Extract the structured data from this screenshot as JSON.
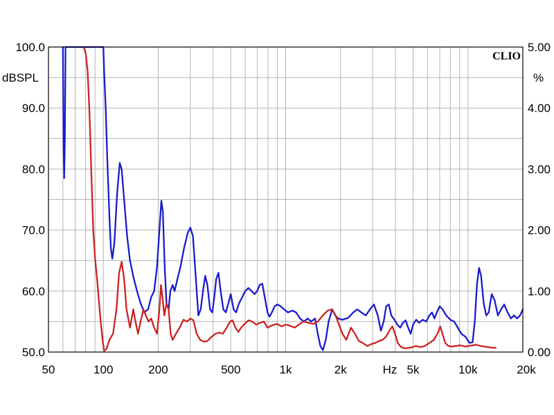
{
  "chart_data": {
    "type": "line",
    "x_scale": "log",
    "xlim": [
      50,
      20000
    ],
    "ylim_left": [
      50,
      100
    ],
    "ylim_right": [
      0,
      5
    ],
    "ylabel_left": "dBSPL",
    "ylabel_right": "%",
    "x_unit_label": "Hz",
    "brand": "CLIO",
    "grid": true,
    "x_ticks": [
      {
        "value": 50,
        "label": "50"
      },
      {
        "value": 100,
        "label": "100"
      },
      {
        "value": 200,
        "label": "200"
      },
      {
        "value": 500,
        "label": "500"
      },
      {
        "value": 1000,
        "label": "1k"
      },
      {
        "value": 2000,
        "label": "2k"
      },
      {
        "value": 5000,
        "label": "5k"
      },
      {
        "value": 10000,
        "label": "10k"
      },
      {
        "value": 20000,
        "label": "20k"
      }
    ],
    "y_ticks_left": [
      "100.0",
      "90.0",
      "80.0",
      "70.0",
      "60.0",
      "50.0"
    ],
    "y_ticks_right": [
      "5.00",
      "4.00",
      "3.00",
      "2.00",
      "1.00",
      "0.00"
    ],
    "colors": {
      "blue": "#1a1acc",
      "red": "#cc2222",
      "grid": "#b4b4b4",
      "frame": "#000000"
    },
    "series": [
      {
        "color": "#1a1acc",
        "points": [
          [
            60,
            100
          ],
          [
            60.5,
            84
          ],
          [
            61,
            78.5
          ],
          [
            61.5,
            85
          ],
          [
            62,
            100
          ],
          [
            100,
            100
          ],
          [
            101,
            96
          ],
          [
            103,
            90
          ],
          [
            105,
            82
          ],
          [
            108,
            72
          ],
          [
            110,
            67
          ],
          [
            112,
            65.3
          ],
          [
            115,
            68
          ],
          [
            119,
            76
          ],
          [
            123,
            81
          ],
          [
            126,
            80
          ],
          [
            130,
            75
          ],
          [
            135,
            69
          ],
          [
            140,
            65
          ],
          [
            147,
            62
          ],
          [
            153,
            60
          ],
          [
            160,
            58
          ],
          [
            168,
            56.5
          ],
          [
            176,
            57
          ],
          [
            183,
            59
          ],
          [
            190,
            60
          ],
          [
            197,
            64
          ],
          [
            203,
            70
          ],
          [
            208,
            74.8
          ],
          [
            212,
            73
          ],
          [
            217,
            64
          ],
          [
            222,
            58
          ],
          [
            228,
            57
          ],
          [
            233,
            60
          ],
          [
            240,
            61
          ],
          [
            246,
            60
          ],
          [
            255,
            62
          ],
          [
            265,
            64
          ],
          [
            277,
            67
          ],
          [
            290,
            69.5
          ],
          [
            300,
            70.4
          ],
          [
            310,
            69
          ],
          [
            320,
            63
          ],
          [
            332,
            56
          ],
          [
            342,
            57
          ],
          [
            352,
            60
          ],
          [
            362,
            62.5
          ],
          [
            372,
            61
          ],
          [
            385,
            57
          ],
          [
            396,
            56.5
          ],
          [
            406,
            59
          ],
          [
            416,
            62
          ],
          [
            428,
            63
          ],
          [
            440,
            60
          ],
          [
            455,
            57
          ],
          [
            470,
            56.5
          ],
          [
            485,
            58
          ],
          [
            500,
            59.5
          ],
          [
            518,
            57
          ],
          [
            535,
            56.5
          ],
          [
            555,
            58
          ],
          [
            578,
            59
          ],
          [
            600,
            60
          ],
          [
            625,
            60.5
          ],
          [
            650,
            60
          ],
          [
            675,
            59.5
          ],
          [
            698,
            60
          ],
          [
            720,
            61
          ],
          [
            745,
            61.2
          ],
          [
            768,
            59
          ],
          [
            795,
            56.5
          ],
          [
            815,
            55.8
          ],
          [
            840,
            56.5
          ],
          [
            870,
            57.5
          ],
          [
            900,
            57.8
          ],
          [
            940,
            57.5
          ],
          [
            980,
            57
          ],
          [
            1030,
            56.5
          ],
          [
            1090,
            56.8
          ],
          [
            1140,
            56.5
          ],
          [
            1200,
            55.5
          ],
          [
            1260,
            55
          ],
          [
            1320,
            55.5
          ],
          [
            1380,
            55
          ],
          [
            1450,
            55.5
          ],
          [
            1500,
            53
          ],
          [
            1550,
            51
          ],
          [
            1600,
            50.3
          ],
          [
            1660,
            52
          ],
          [
            1720,
            55
          ],
          [
            1800,
            57
          ],
          [
            1870,
            56
          ],
          [
            1940,
            55.5
          ],
          [
            2050,
            55.3
          ],
          [
            2200,
            55.6
          ],
          [
            2350,
            56.5
          ],
          [
            2470,
            57
          ],
          [
            2600,
            56.5
          ],
          [
            2750,
            56
          ],
          [
            2900,
            57
          ],
          [
            3050,
            57.8
          ],
          [
            3200,
            56
          ],
          [
            3330,
            53.5
          ],
          [
            3450,
            55
          ],
          [
            3560,
            57.5
          ],
          [
            3680,
            57.8
          ],
          [
            3800,
            56
          ],
          [
            3950,
            55.3
          ],
          [
            4100,
            54.5
          ],
          [
            4250,
            54
          ],
          [
            4400,
            54.8
          ],
          [
            4550,
            55.2
          ],
          [
            4700,
            54
          ],
          [
            4850,
            53
          ],
          [
            5000,
            54.5
          ],
          [
            5200,
            55.3
          ],
          [
            5400,
            54.8
          ],
          [
            5650,
            55.3
          ],
          [
            5900,
            55
          ],
          [
            6150,
            56
          ],
          [
            6350,
            56.5
          ],
          [
            6550,
            55.5
          ],
          [
            6750,
            56.5
          ],
          [
            7000,
            57.5
          ],
          [
            7250,
            57
          ],
          [
            7600,
            56
          ],
          [
            8000,
            55.3
          ],
          [
            8400,
            55
          ],
          [
            8800,
            54
          ],
          [
            9200,
            53
          ],
          [
            9700,
            52.5
          ],
          [
            10200,
            51.5
          ],
          [
            10600,
            51.6
          ],
          [
            10900,
            55
          ],
          [
            11200,
            61
          ],
          [
            11500,
            63.8
          ],
          [
            11800,
            62.5
          ],
          [
            12200,
            58
          ],
          [
            12600,
            56
          ],
          [
            13000,
            56.5
          ],
          [
            13500,
            59.5
          ],
          [
            14000,
            58.5
          ],
          [
            14600,
            56
          ],
          [
            15200,
            57
          ],
          [
            15800,
            57.8
          ],
          [
            16500,
            56.5
          ],
          [
            17200,
            55.5
          ],
          [
            17900,
            56
          ],
          [
            18600,
            55.5
          ],
          [
            19300,
            56
          ],
          [
            20000,
            57
          ]
        ]
      },
      {
        "color": "#cc2222",
        "points": [
          [
            78,
            100
          ],
          [
            80,
            99
          ],
          [
            82,
            96
          ],
          [
            84,
            89
          ],
          [
            86,
            79
          ],
          [
            88,
            70
          ],
          [
            90,
            65.5
          ],
          [
            93,
            61
          ],
          [
            96,
            56
          ],
          [
            99,
            52
          ],
          [
            101,
            50.2
          ],
          [
            104,
            50.5
          ],
          [
            108,
            52
          ],
          [
            113,
            53
          ],
          [
            118,
            57
          ],
          [
            122,
            63
          ],
          [
            126,
            64.8
          ],
          [
            130,
            62
          ],
          [
            134,
            57
          ],
          [
            140,
            54
          ],
          [
            146,
            57
          ],
          [
            150,
            55
          ],
          [
            155,
            53
          ],
          [
            160,
            55
          ],
          [
            166,
            57
          ],
          [
            171,
            56
          ],
          [
            177,
            55
          ],
          [
            183,
            55.5
          ],
          [
            190,
            54
          ],
          [
            197,
            53
          ],
          [
            203,
            57
          ],
          [
            207,
            61
          ],
          [
            211,
            59
          ],
          [
            216,
            56
          ],
          [
            222,
            58
          ],
          [
            228,
            57
          ],
          [
            234,
            53
          ],
          [
            240,
            52
          ],
          [
            250,
            53
          ],
          [
            262,
            54
          ],
          [
            275,
            55.3
          ],
          [
            288,
            55
          ],
          [
            300,
            55.5
          ],
          [
            312,
            55.2
          ],
          [
            325,
            53
          ],
          [
            340,
            52
          ],
          [
            355,
            51.7
          ],
          [
            372,
            51.8
          ],
          [
            392,
            52.5
          ],
          [
            412,
            53
          ],
          [
            432,
            53.2
          ],
          [
            452,
            53
          ],
          [
            475,
            54
          ],
          [
            495,
            55
          ],
          [
            512,
            55.2
          ],
          [
            530,
            54
          ],
          [
            550,
            53.3
          ],
          [
            570,
            54
          ],
          [
            595,
            54.6
          ],
          [
            625,
            55.2
          ],
          [
            655,
            55
          ],
          [
            690,
            54.5
          ],
          [
            725,
            54.8
          ],
          [
            760,
            55
          ],
          [
            795,
            54
          ],
          [
            830,
            54.3
          ],
          [
            865,
            54.5
          ],
          [
            900,
            54.6
          ],
          [
            950,
            54.2
          ],
          [
            1000,
            54.5
          ],
          [
            1060,
            54.3
          ],
          [
            1120,
            54
          ],
          [
            1180,
            54.5
          ],
          [
            1250,
            55
          ],
          [
            1330,
            54.8
          ],
          [
            1420,
            54.6
          ],
          [
            1500,
            55
          ],
          [
            1600,
            56
          ],
          [
            1700,
            56.8
          ],
          [
            1800,
            57
          ],
          [
            1880,
            56
          ],
          [
            1960,
            54.5
          ],
          [
            2050,
            53
          ],
          [
            2150,
            52
          ],
          [
            2280,
            54
          ],
          [
            2400,
            53
          ],
          [
            2520,
            51.8
          ],
          [
            2650,
            51.5
          ],
          [
            2800,
            51
          ],
          [
            2950,
            51.3
          ],
          [
            3100,
            51.5
          ],
          [
            3250,
            51.8
          ],
          [
            3400,
            52
          ],
          [
            3550,
            52.5
          ],
          [
            3700,
            53.5
          ],
          [
            3850,
            54.2
          ],
          [
            3980,
            53
          ],
          [
            4120,
            51.5
          ],
          [
            4300,
            50.8
          ],
          [
            4500,
            50.6
          ],
          [
            4700,
            50.7
          ],
          [
            4950,
            50.8
          ],
          [
            5200,
            51
          ],
          [
            5500,
            50.8
          ],
          [
            5800,
            51
          ],
          [
            6150,
            51.5
          ],
          [
            6500,
            52
          ],
          [
            6800,
            53
          ],
          [
            7050,
            54.2
          ],
          [
            7250,
            53
          ],
          [
            7500,
            51.5
          ],
          [
            7800,
            51
          ],
          [
            8150,
            50.9
          ],
          [
            8600,
            51
          ],
          [
            9100,
            51.1
          ],
          [
            9600,
            50.9
          ],
          [
            10100,
            51
          ],
          [
            10600,
            51.1
          ],
          [
            11100,
            51.2
          ],
          [
            11700,
            51
          ],
          [
            12300,
            50.9
          ],
          [
            12900,
            50.8
          ],
          [
            13600,
            50.7
          ],
          [
            14200,
            50.7
          ]
        ]
      }
    ]
  }
}
